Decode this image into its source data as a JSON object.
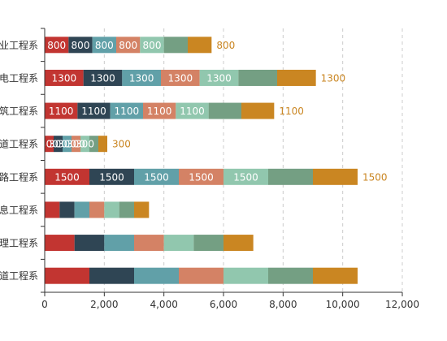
{
  "chart_data": {
    "type": "bar",
    "orientation": "horizontal",
    "stacked": true,
    "categories": [
      "道工程系",
      "理工程系",
      "息工程系",
      "路工程系",
      "道工程系",
      "筑工程系",
      "电工程系",
      "业工程系"
    ],
    "series": [
      {
        "color": "#c23531",
        "values": [
          1500,
          1000,
          500,
          1500,
          300,
          1100,
          1300,
          800
        ],
        "labels": [
          "",
          "",
          "",
          "1500",
          "300",
          "1100",
          "1300",
          "800"
        ]
      },
      {
        "color": "#2f4554",
        "values": [
          1500,
          1000,
          500,
          1500,
          300,
          1100,
          1300,
          800
        ],
        "labels": [
          "",
          "",
          "",
          "1500",
          "300",
          "1100",
          "1300",
          "800"
        ]
      },
      {
        "color": "#61a0a8",
        "values": [
          1500,
          1000,
          500,
          1500,
          300,
          1100,
          1300,
          800
        ],
        "labels": [
          "",
          "",
          "",
          "1500",
          "300",
          "1100",
          "1300",
          "800"
        ]
      },
      {
        "color": "#d48265",
        "values": [
          1500,
          1000,
          500,
          1500,
          300,
          1100,
          1300,
          800
        ],
        "labels": [
          "",
          "",
          "",
          "1500",
          "300",
          "1100",
          "1300",
          "800"
        ]
      },
      {
        "color": "#91c7ae",
        "values": [
          1500,
          1000,
          500,
          1500,
          300,
          1100,
          1300,
          800
        ],
        "labels": [
          "",
          "",
          "",
          "1500",
          "300",
          "1100",
          "1300",
          "800"
        ]
      },
      {
        "color": "#749f83",
        "values": [
          1500,
          1000,
          500,
          1500,
          300,
          1100,
          1300,
          800
        ],
        "labels": [
          "",
          "",
          "",
          "",
          "",
          "",
          "",
          ""
        ]
      },
      {
        "color": "#ca8622",
        "values": [
          1500,
          1000,
          500,
          1500,
          300,
          1100,
          1300,
          800
        ],
        "labels": [
          "",
          "",
          "",
          "",
          "",
          "",
          "",
          ""
        ]
      }
    ],
    "end_labels": [
      "",
      "",
      "",
      "1500",
      "300",
      "1100",
      "1300",
      "800"
    ],
    "end_label_color": "#ca8622",
    "xlim": [
      0,
      12000
    ],
    "xticks": [
      0,
      2000,
      4000,
      6000,
      8000,
      10000,
      12000
    ],
    "xtick_labels": [
      "0",
      "2,000",
      "4,000",
      "6,000",
      "8,000",
      "10,000",
      "12,000"
    ],
    "grid": "vertical dashed"
  }
}
